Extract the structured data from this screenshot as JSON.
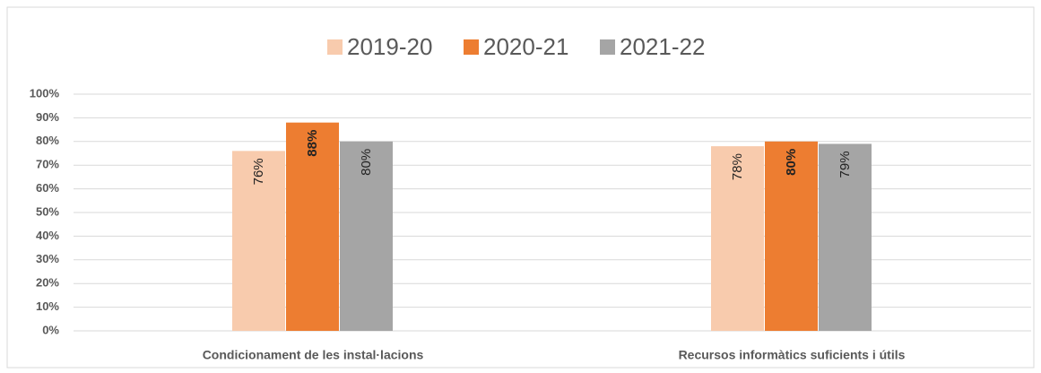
{
  "chart_data": {
    "type": "bar",
    "categories": [
      "Condicionament de les instal·lacions",
      "Recursos informàtics suficients i útils"
    ],
    "series": [
      {
        "name": "2019-20",
        "color": "#f8cbad",
        "values": [
          76,
          78
        ],
        "value_labels": [
          "76%",
          "78%"
        ]
      },
      {
        "name": "2020-21",
        "color": "#ed7d31",
        "values": [
          88,
          80
        ],
        "value_labels": [
          "88%",
          "80%"
        ]
      },
      {
        "name": "2021-22",
        "color": "#a5a5a5",
        "values": [
          80,
          79
        ],
        "value_labels": [
          "80%",
          "79%"
        ]
      }
    ],
    "ylim": [
      0,
      100
    ],
    "yticks": [
      {
        "value": 0,
        "label": "0%"
      },
      {
        "value": 10,
        "label": "10%"
      },
      {
        "value": 20,
        "label": "20%"
      },
      {
        "value": 30,
        "label": "30%"
      },
      {
        "value": 40,
        "label": "40%"
      },
      {
        "value": 50,
        "label": "50%"
      },
      {
        "value": 60,
        "label": "60%"
      },
      {
        "value": 70,
        "label": "70%"
      },
      {
        "value": 80,
        "label": "80%"
      },
      {
        "value": 90,
        "label": "90%"
      },
      {
        "value": 100,
        "label": "100%"
      }
    ],
    "grid": true,
    "legend": "top"
  }
}
